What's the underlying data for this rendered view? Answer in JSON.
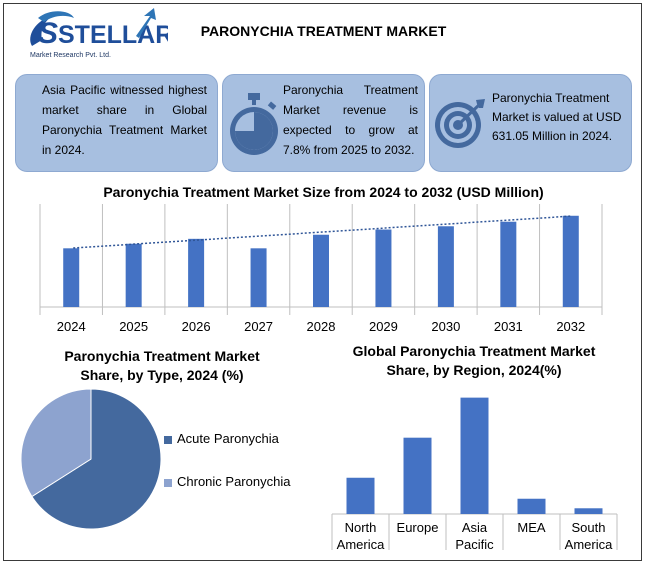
{
  "logo": {
    "name": "STELLAR",
    "tagline": "Market Research Pvt. Ltd."
  },
  "title": "PARONYCHIA TREATMENT MARKET",
  "cards": [
    {
      "text": "Asia Pacific witnessed highest market share in Global Paronychia Treatment Market in 2024.",
      "icon": ""
    },
    {
      "text": "Paronychia Treatment Market revenue is expected to grow at 7.8% from 2025 to 2032.",
      "icon": "stopwatch-icon"
    },
    {
      "text": "Paronychia Treatment Market is valued at USD 631.05 Million in 2024.",
      "icon": "target-icon"
    }
  ],
  "colors": {
    "bar": "#4472c4",
    "card_bg": "#a7bfe0",
    "icon": "#44699e",
    "pie_primary": "#44699e",
    "pie_secondary": "#8da3cf",
    "grid": "#bfbfbf"
  },
  "chart_data": [
    {
      "type": "bar",
      "title": "Paronychia Treatment Market Size from 2024 to 2032 (USD Million)",
      "categories": [
        "2024",
        "2025",
        "2026",
        "2027",
        "2028",
        "2029",
        "2030",
        "2031",
        "2032"
      ],
      "values": [
        631.05,
        680,
        733,
        631,
        777,
        833,
        868,
        917,
        981
      ],
      "trendline": "dotted linear",
      "ylim": [
        0,
        1000
      ],
      "grid": "vertical"
    },
    {
      "type": "pie",
      "title": "Paronychia Treatment Market Share, by Type, 2024 (%)",
      "labels": [
        "Acute Paronychia",
        "Chronic Paronychia"
      ],
      "values": [
        66,
        34
      ],
      "legend": "right"
    },
    {
      "type": "bar",
      "title": "Global Paronychia Treatment Market Share, by Region, 2024(%)",
      "categories": [
        "North America",
        "Europe",
        "Asia Pacific",
        "MEA",
        "South America"
      ],
      "values": [
        19,
        40,
        61,
        8,
        3
      ],
      "ylim": [
        0,
        65
      ]
    }
  ]
}
